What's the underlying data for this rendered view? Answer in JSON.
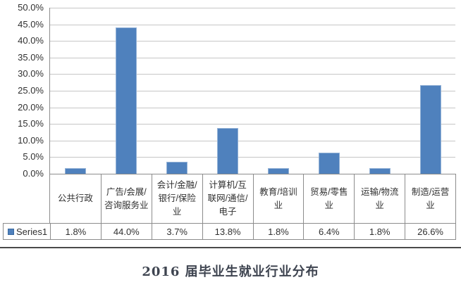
{
  "chart_data": {
    "type": "bar",
    "title": "2016 届毕业生就业行业分布",
    "categories": [
      "公共行政",
      "广告/会展/咨询服务业",
      "会计/金融/银行/保险业",
      "计算机/互联网/通信/电子",
      "教育/培训业",
      "贸易/零售业",
      "运输/物流业",
      "制造/运营业"
    ],
    "series": [
      {
        "name": "Series1",
        "values": [
          1.8,
          44.0,
          3.7,
          13.8,
          1.8,
          6.4,
          1.8,
          26.6
        ]
      }
    ],
    "value_labels": [
      "1.8%",
      "44.0%",
      "3.7%",
      "13.8%",
      "1.8%",
      "6.4%",
      "1.8%",
      "26.6%"
    ],
    "xlabel": "",
    "ylabel": "",
    "ylim": [
      0,
      50
    ],
    "ytick_step": 5,
    "ytick_labels": [
      "50.0%",
      "45.0%",
      "40.0%",
      "35.0%",
      "30.0%",
      "25.0%",
      "20.0%",
      "15.0%",
      "10.0%",
      "5.0%",
      "0.0%"
    ],
    "grid": true,
    "legend_position": "data-table-left",
    "colors": {
      "bar_fill": "#4f81bd",
      "bar_border": "#95b3d7",
      "gridline": "#c6c6c6",
      "table_border": "#8c8c8c",
      "text": "#303030",
      "title_text": "#3e4450",
      "bottom_rule": "#4a4a4a",
      "background": "#ffffff"
    }
  }
}
